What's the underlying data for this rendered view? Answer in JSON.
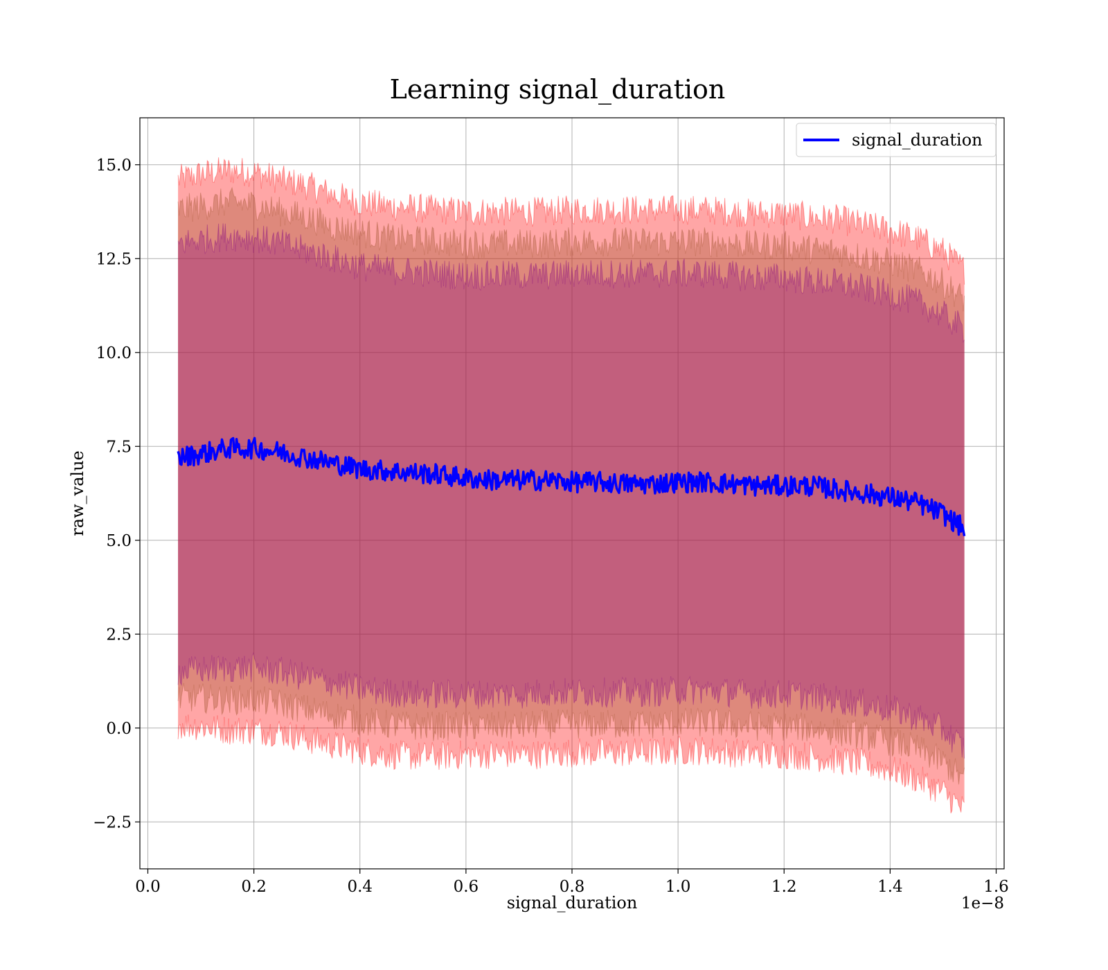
{
  "chart_data": {
    "type": "area",
    "title": "Learning signal_duration",
    "xlabel": "signal_duration",
    "ylabel": "raw_value",
    "x_offset_label": "1e−8",
    "xlim": [
      -0.015,
      1.615
    ],
    "ylim": [
      -3.75,
      16.25
    ],
    "x_scale_factor": 1e-08,
    "x_ticks": [
      0.0,
      0.2,
      0.4,
      0.6,
      0.8,
      1.0,
      1.2,
      1.4,
      1.6
    ],
    "x_tick_labels": [
      "0.0",
      "0.2",
      "0.4",
      "0.6",
      "0.8",
      "1.0",
      "1.2",
      "1.4",
      "1.6"
    ],
    "y_ticks": [
      -2.5,
      0.0,
      2.5,
      5.0,
      7.5,
      10.0,
      12.5,
      15.0
    ],
    "y_tick_labels": [
      "−2.5",
      "0.0",
      "2.5",
      "5.0",
      "7.5",
      "10.0",
      "12.5",
      "15.0"
    ],
    "grid": true,
    "legend_position": "top-right",
    "x": [
      0.057,
      0.1,
      0.15,
      0.2,
      0.25,
      0.3,
      0.35,
      0.4,
      0.45,
      0.5,
      0.55,
      0.6,
      0.65,
      0.7,
      0.75,
      0.8,
      0.85,
      0.9,
      0.95,
      1.0,
      1.05,
      1.1,
      1.15,
      1.2,
      1.25,
      1.3,
      1.35,
      1.4,
      1.45,
      1.5,
      1.54
    ],
    "series": [
      {
        "name": "signal_duration",
        "color": "#0000ff",
        "values": [
          7.2,
          7.3,
          7.45,
          7.45,
          7.35,
          7.2,
          7.05,
          6.9,
          6.85,
          6.8,
          6.75,
          6.65,
          6.6,
          6.6,
          6.6,
          6.55,
          6.55,
          6.5,
          6.5,
          6.55,
          6.55,
          6.5,
          6.45,
          6.45,
          6.45,
          6.35,
          6.25,
          6.15,
          6.0,
          5.7,
          5.3
        ]
      }
    ],
    "bands": [
      {
        "color": "#ff0000",
        "upper": [
          14.6,
          14.75,
          14.85,
          14.8,
          14.6,
          14.45,
          14.2,
          14.0,
          13.9,
          13.85,
          13.8,
          13.75,
          13.75,
          13.75,
          13.75,
          13.8,
          13.8,
          13.8,
          13.8,
          13.8,
          13.8,
          13.75,
          13.7,
          13.7,
          13.6,
          13.55,
          13.4,
          13.25,
          13.05,
          12.7,
          12.2
        ],
        "lower": [
          0.1,
          0.05,
          -0.05,
          -0.05,
          -0.1,
          -0.3,
          -0.45,
          -0.6,
          -0.7,
          -0.75,
          -0.75,
          -0.7,
          -0.7,
          -0.7,
          -0.7,
          -0.65,
          -0.65,
          -0.65,
          -0.65,
          -0.6,
          -0.6,
          -0.65,
          -0.7,
          -0.7,
          -0.75,
          -0.85,
          -0.95,
          -1.1,
          -1.35,
          -1.7,
          -2.2
        ]
      },
      {
        "color": "#a0522d",
        "upper": [
          13.8,
          13.9,
          14.0,
          13.95,
          13.75,
          13.6,
          13.35,
          13.2,
          13.05,
          13.0,
          12.95,
          12.9,
          12.9,
          12.9,
          12.9,
          12.95,
          12.95,
          12.95,
          12.95,
          12.95,
          12.95,
          12.9,
          12.85,
          12.85,
          12.75,
          12.7,
          12.55,
          12.4,
          12.2,
          11.85,
          11.4
        ],
        "lower": [
          0.8,
          0.8,
          0.75,
          0.75,
          0.65,
          0.5,
          0.35,
          0.2,
          0.1,
          0.05,
          0.05,
          0.05,
          0.05,
          0.05,
          0.1,
          0.1,
          0.1,
          0.1,
          0.1,
          0.15,
          0.15,
          0.1,
          0.05,
          0.05,
          0.0,
          -0.1,
          -0.2,
          -0.35,
          -0.55,
          -0.9,
          -1.4
        ]
      },
      {
        "color": "#800080",
        "upper": [
          12.9,
          13.0,
          13.1,
          13.05,
          12.9,
          12.7,
          12.5,
          12.3,
          12.2,
          12.15,
          12.1,
          12.05,
          12.05,
          12.05,
          12.05,
          12.1,
          12.1,
          12.1,
          12.1,
          12.1,
          12.1,
          12.05,
          12.0,
          12.0,
          11.9,
          11.85,
          11.7,
          11.55,
          11.35,
          11.0,
          10.6
        ],
        "lower": [
          1.5,
          1.55,
          1.6,
          1.6,
          1.5,
          1.35,
          1.2,
          1.05,
          0.95,
          0.9,
          0.9,
          0.9,
          0.9,
          0.9,
          0.95,
          0.95,
          0.95,
          0.95,
          0.95,
          1.0,
          1.0,
          0.95,
          0.9,
          0.9,
          0.85,
          0.75,
          0.65,
          0.5,
          0.3,
          -0.05,
          -0.55
        ]
      }
    ]
  }
}
